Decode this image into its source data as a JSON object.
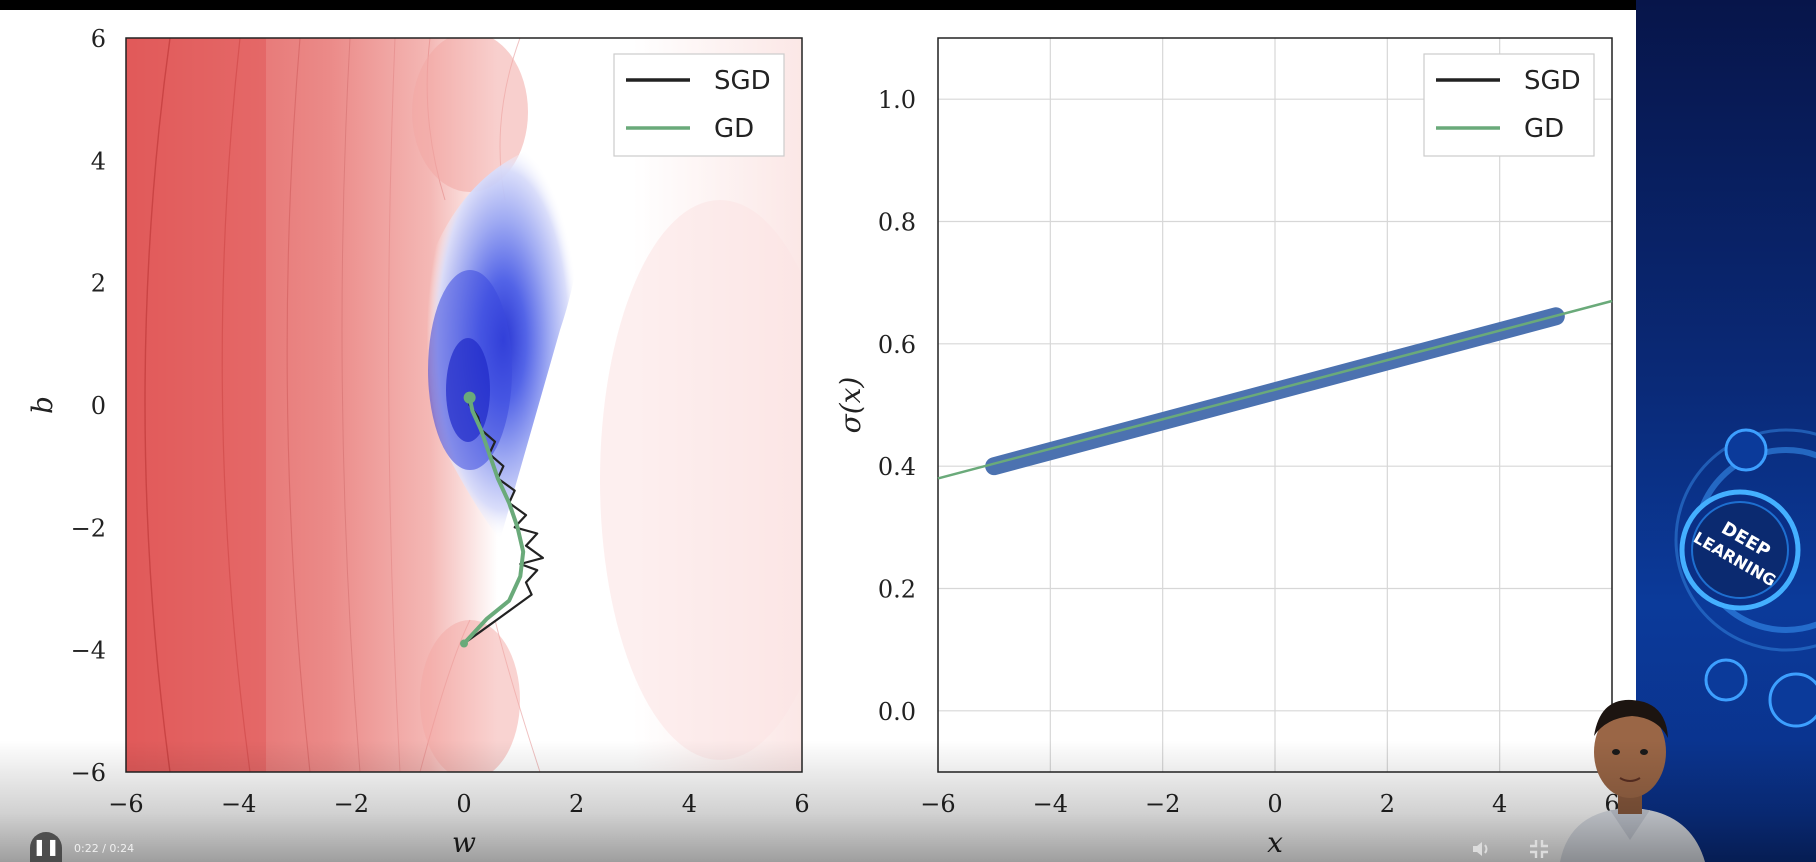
{
  "player": {
    "time": "0:22 / 0:24",
    "play_icon": "pause-icon",
    "volume_icon": "volume-icon",
    "fullscreen_icon": "exit-fullscreen-icon"
  },
  "side_badge": {
    "line1": "DEEP",
    "line2": "LEARNING"
  },
  "colors": {
    "sgd": "#222222",
    "gd": "#6aaa7a",
    "points": "#4c72b0",
    "contour_high": "#e0585a",
    "contour_low": "#2a36d8"
  },
  "chart_data": [
    {
      "type": "contour",
      "xlabel": "w",
      "ylabel": "b",
      "xlim": [
        -6,
        6
      ],
      "ylim": [
        -6,
        6
      ],
      "xticks": [
        "−6",
        "−4",
        "−2",
        "0",
        "2",
        "4",
        "6"
      ],
      "yticks": [
        "−6",
        "−4",
        "−2",
        "0",
        "2",
        "4",
        "6"
      ],
      "legend": {
        "placement": "top-right",
        "entries": [
          "SGD",
          "GD"
        ]
      },
      "grid": false,
      "series": [
        {
          "name": "SGD",
          "points": [
            [
              0.0,
              -3.9
            ],
            [
              0.3,
              -3.7
            ],
            [
              0.6,
              -3.5
            ],
            [
              0.9,
              -3.3
            ],
            [
              1.2,
              -3.1
            ],
            [
              1.1,
              -2.9
            ],
            [
              1.3,
              -2.7
            ],
            [
              1.0,
              -2.6
            ],
            [
              1.4,
              -2.5
            ],
            [
              1.1,
              -2.3
            ],
            [
              1.3,
              -2.1
            ],
            [
              0.9,
              -2.0
            ],
            [
              1.1,
              -1.8
            ],
            [
              0.8,
              -1.6
            ],
            [
              0.9,
              -1.4
            ],
            [
              0.6,
              -1.2
            ],
            [
              0.7,
              -1.0
            ],
            [
              0.45,
              -0.8
            ],
            [
              0.55,
              -0.6
            ],
            [
              0.3,
              -0.4
            ],
            [
              0.25,
              -0.2
            ],
            [
              0.1,
              0.0
            ],
            [
              0.1,
              0.12
            ]
          ]
        },
        {
          "name": "GD",
          "points": [
            [
              0.0,
              -3.9
            ],
            [
              0.4,
              -3.5
            ],
            [
              0.8,
              -3.2
            ],
            [
              1.0,
              -2.8
            ],
            [
              1.05,
              -2.4
            ],
            [
              0.95,
              -2.0
            ],
            [
              0.8,
              -1.6
            ],
            [
              0.6,
              -1.2
            ],
            [
              0.45,
              -0.8
            ],
            [
              0.3,
              -0.4
            ],
            [
              0.15,
              -0.1
            ],
            [
              0.1,
              0.12
            ]
          ]
        }
      ]
    },
    {
      "type": "line",
      "xlabel": "x",
      "ylabel": "σ(x)",
      "xlim": [
        -6,
        6
      ],
      "ylim": [
        -0.1,
        1.1
      ],
      "xticks": [
        "−6",
        "−4",
        "−2",
        "0",
        "2",
        "4",
        "6"
      ],
      "yticks": [
        "0.0",
        "0.2",
        "0.4",
        "0.6",
        "0.8",
        "1.0"
      ],
      "legend": {
        "placement": "top-right",
        "entries": [
          "SGD",
          "GD"
        ]
      },
      "grid": true,
      "series": [
        {
          "name": "SGD",
          "x": [
            -6,
            6
          ],
          "y": [
            0.38,
            0.67
          ]
        },
        {
          "name": "GD",
          "x": [
            -6,
            6
          ],
          "y": [
            0.38,
            0.67
          ]
        }
      ],
      "scatter": {
        "x_range": [
          -5,
          5
        ],
        "y_range": [
          0.4,
          0.645
        ]
      }
    }
  ]
}
